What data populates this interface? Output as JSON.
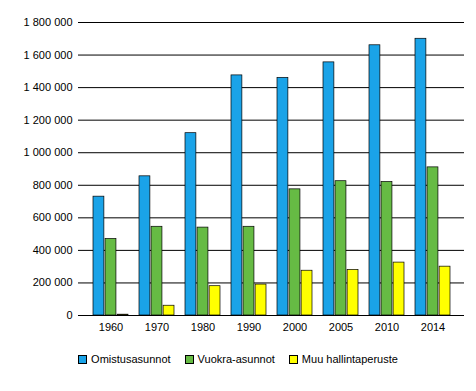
{
  "chart_data": {
    "type": "bar",
    "categories": [
      "1960",
      "1970",
      "1980",
      "1990",
      "2000",
      "2005",
      "2010",
      "2014"
    ],
    "series": [
      {
        "name": "Omistusasunnot",
        "color": "#1aa3e8",
        "values": [
          730000,
          855000,
          1120000,
          1475000,
          1460000,
          1555000,
          1660000,
          1700000
        ]
      },
      {
        "name": "Vuokra-asunnot",
        "color": "#66bb44",
        "values": [
          470000,
          545000,
          540000,
          545000,
          775000,
          825000,
          820000,
          910000
        ]
      },
      {
        "name": "Muu hallintaperuste",
        "color": "#ffff00",
        "values": [
          5000,
          60000,
          180000,
          190000,
          275000,
          280000,
          325000,
          300000
        ]
      }
    ],
    "ylim": [
      0,
      1800000
    ],
    "yticks": [
      0,
      {
        "value": 200000,
        "label": "200 000"
      },
      {
        "value": 400000,
        "label": "400 000"
      },
      {
        "value": 600000,
        "label": "600 000"
      },
      {
        "value": 800000,
        "label": "800 000"
      },
      {
        "value": 1000000,
        "label": "1 000 000"
      },
      {
        "value": 1200000,
        "label": "1 200 000"
      },
      {
        "value": 1400000,
        "label": "1 400 000"
      },
      {
        "value": 1600000,
        "label": "1 600 000"
      },
      {
        "value": 1800000,
        "label": "1 800 000"
      }
    ],
    "grid": true,
    "legend": "bottom"
  }
}
